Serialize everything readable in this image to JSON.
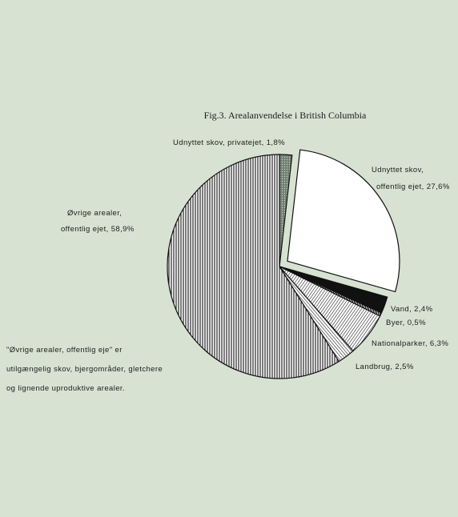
{
  "chart_data": {
    "type": "pie",
    "title": "Fig.3. Arealanvendelse i British Columbia",
    "slices": [
      {
        "label": "Udnyttet skov, privatejet, 1,8%",
        "value": 1.8,
        "pattern": "dots"
      },
      {
        "label": "Udnyttet skov, offentlig ejet, 27,6%",
        "value": 27.6,
        "pattern": "white",
        "exploded": true
      },
      {
        "label": "Vand, 2,4%",
        "value": 2.4,
        "pattern": "solid"
      },
      {
        "label": "Byer, 0,5%",
        "value": 0.5,
        "pattern": "dense-vertical"
      },
      {
        "label": "Nationalparker, 6,3%",
        "value": 6.3,
        "pattern": "diagonal"
      },
      {
        "label": "Landbrug, 2,5%",
        "value": 2.5,
        "pattern": "diagonal-back"
      },
      {
        "label": "Øvrige arealer, offentlig ejet, 58,9%",
        "value": 58.9,
        "pattern": "vertical"
      }
    ],
    "label_lines": {
      "privat": "Udnyttet skov, privatejet, 1,8%",
      "offentlig_1": "Udnyttet skov,",
      "offentlig_2": "offentlig ejet, 27,6%",
      "vand": "Vand, 2,4%",
      "byer": "Byer, 0,5%",
      "national": "Nationalparker, 6,3%",
      "landbrug": "Landbrug, 2,5%",
      "ovrige_1": "Øvrige arealer,",
      "ovrige_2": "offentlig ejet, 58,9%"
    },
    "footnote": [
      "\"Øvrige arealer, offentlig eje\" er",
      "utilgængelig skov, bjergområder, gletchere",
      "og lignende uproduktive arealer."
    ]
  }
}
